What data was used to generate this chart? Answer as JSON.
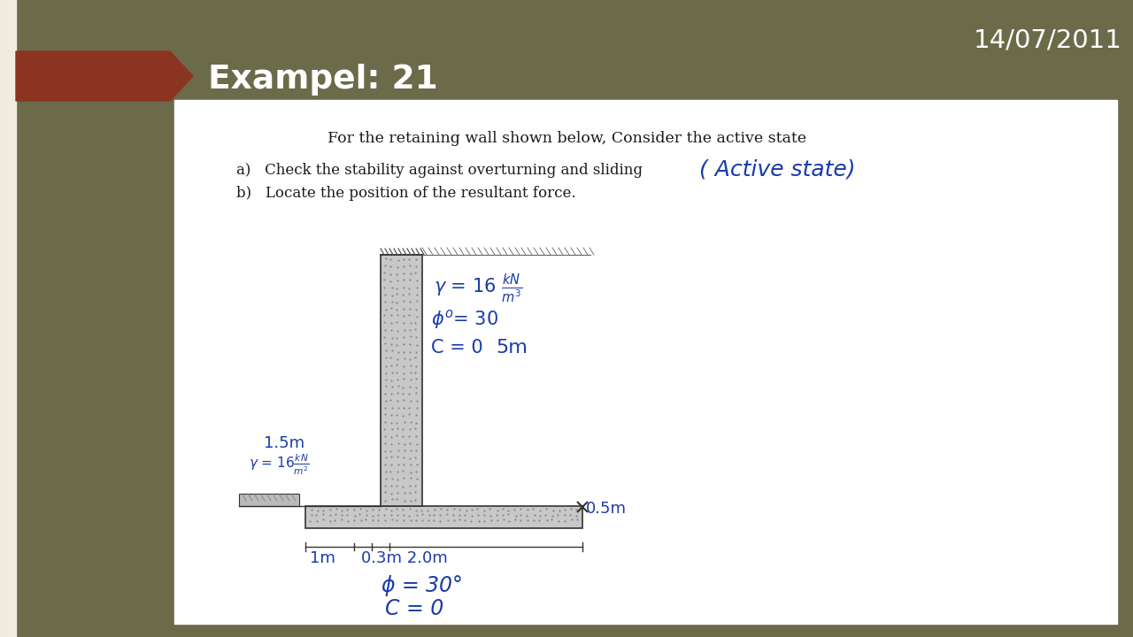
{
  "bg_color": "#6b6b4a",
  "cream_strip_color": "#f0ede0",
  "white_panel_color": "#ffffff",
  "title_bg": "#8b3520",
  "date_text": "14/07/2011",
  "title_text": "Exampel: 21",
  "subtitle": "For the retaining wall shown below, Consider the active state",
  "item_a": "a)   Check the stability against overturning and sliding",
  "item_b": "b)   Locate the position of the resultant force.",
  "handwritten_note": "( Active state)",
  "wall_color": "#c8c8c8",
  "wall_edge": "#333333",
  "dim_color": "#1a3aaa",
  "text_color": "#1a1a1a"
}
